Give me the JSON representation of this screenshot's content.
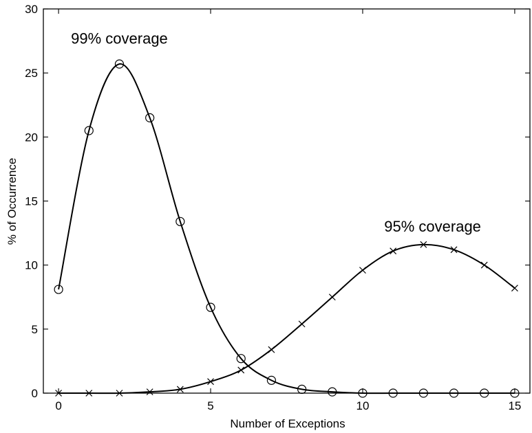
{
  "chart_data": {
    "type": "line",
    "xlabel": "Number of Exceptions",
    "ylabel": "% of Occurrence",
    "xlim": [
      -0.5,
      15.5
    ],
    "ylim": [
      0,
      30
    ],
    "xticks": [
      0,
      5,
      10,
      15
    ],
    "yticks": [
      0,
      5,
      10,
      15,
      20,
      25,
      30
    ],
    "grid": false,
    "series": [
      {
        "name": "99% coverage",
        "marker": "circle",
        "x": [
          0,
          1,
          2,
          3,
          4,
          5,
          6,
          7,
          8,
          9,
          10,
          11,
          12,
          13,
          14,
          15
        ],
        "values": [
          8.1,
          20.5,
          25.7,
          21.5,
          13.4,
          6.7,
          2.7,
          1.0,
          0.3,
          0.1,
          0.0,
          0.0,
          0.0,
          0.0,
          0.0,
          0.0
        ]
      },
      {
        "name": "95% coverage",
        "marker": "x",
        "x": [
          0,
          1,
          2,
          3,
          4,
          5,
          6,
          7,
          8,
          9,
          10,
          11,
          12,
          13,
          14,
          15
        ],
        "values": [
          0.0,
          0.0,
          0.0,
          0.1,
          0.3,
          0.9,
          1.8,
          3.4,
          5.4,
          7.5,
          9.6,
          11.1,
          11.6,
          11.2,
          10.0,
          8.2
        ]
      }
    ],
    "annotations": [
      {
        "text": "99% coverage",
        "x": 2,
        "y": 27.3
      },
      {
        "text": "95% coverage",
        "x": 12.3,
        "y": 12.6
      }
    ]
  }
}
